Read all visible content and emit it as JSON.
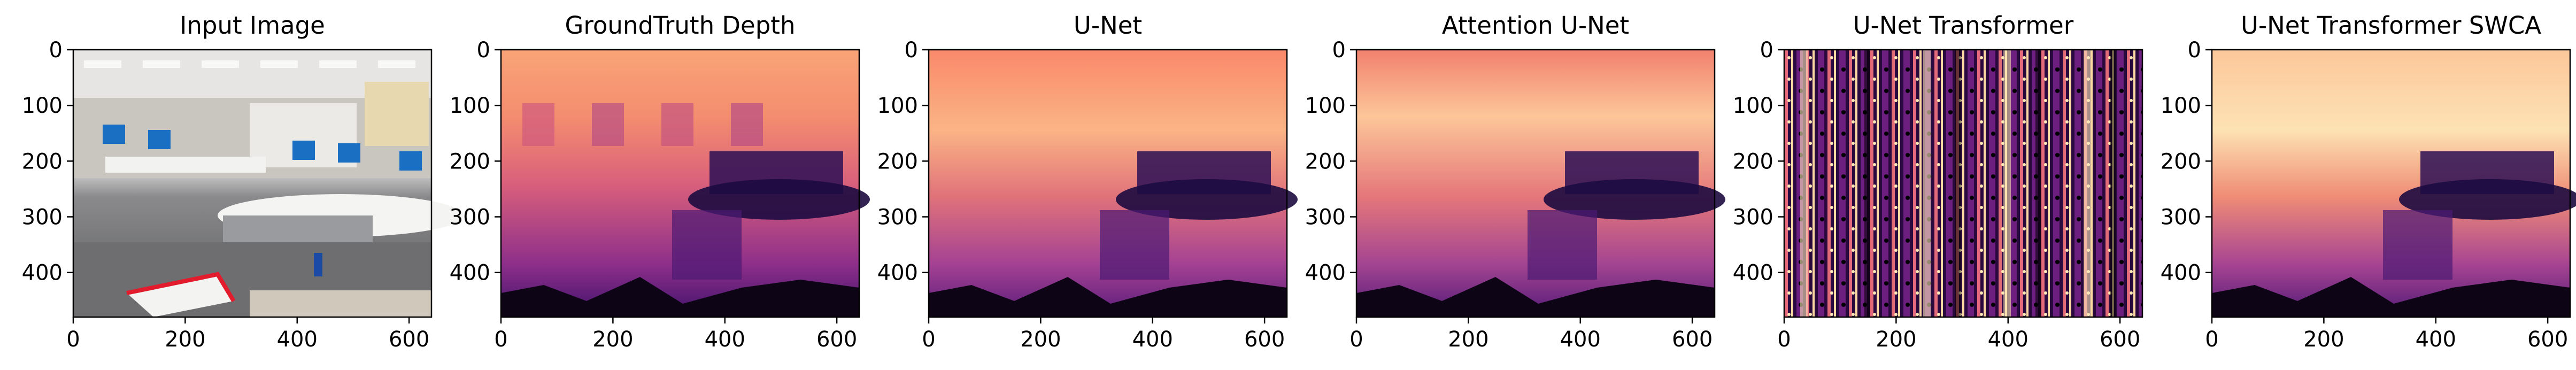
{
  "chart_data": [
    {
      "type": "image",
      "title": "Input Image",
      "content": "photo of an office room",
      "x_ticks": [
        "0",
        "200",
        "400",
        "600"
      ],
      "y_ticks": [
        "0",
        "100",
        "200",
        "300",
        "400"
      ],
      "xlim": [
        0,
        640
      ],
      "ylim": [
        480,
        0
      ]
    },
    {
      "type": "heatmap",
      "title": "GroundTruth Depth",
      "colormap": "magma",
      "x_ticks": [
        "0",
        "200",
        "400",
        "600"
      ],
      "y_ticks": [
        "0",
        "100",
        "200",
        "300",
        "400"
      ],
      "xlim": [
        0,
        640
      ],
      "ylim": [
        480,
        0
      ]
    },
    {
      "type": "heatmap",
      "title": "U-Net",
      "colormap": "magma",
      "x_ticks": [
        "0",
        "200",
        "400",
        "600"
      ],
      "y_ticks": [
        "0",
        "100",
        "200",
        "300",
        "400"
      ],
      "xlim": [
        0,
        640
      ],
      "ylim": [
        480,
        0
      ]
    },
    {
      "type": "heatmap",
      "title": "Attention U-Net",
      "colormap": "magma",
      "x_ticks": [
        "0",
        "200",
        "400",
        "600"
      ],
      "y_ticks": [
        "0",
        "100",
        "200",
        "300",
        "400"
      ],
      "xlim": [
        0,
        640
      ],
      "ylim": [
        480,
        0
      ]
    },
    {
      "type": "heatmap",
      "title": "U-Net Transformer",
      "colormap": "magma",
      "x_ticks": [
        "0",
        "200",
        "400",
        "600"
      ],
      "y_ticks": [
        "0",
        "100",
        "200",
        "300",
        "400"
      ],
      "xlim": [
        0,
        640
      ],
      "ylim": [
        480,
        0
      ]
    },
    {
      "type": "heatmap",
      "title": "U-Net Transformer SWCA",
      "colormap": "magma",
      "x_ticks": [
        "0",
        "200",
        "400",
        "600"
      ],
      "y_ticks": [
        "0",
        "100",
        "200",
        "300",
        "400"
      ],
      "xlim": [
        0,
        640
      ],
      "ylim": [
        480,
        0
      ]
    }
  ]
}
